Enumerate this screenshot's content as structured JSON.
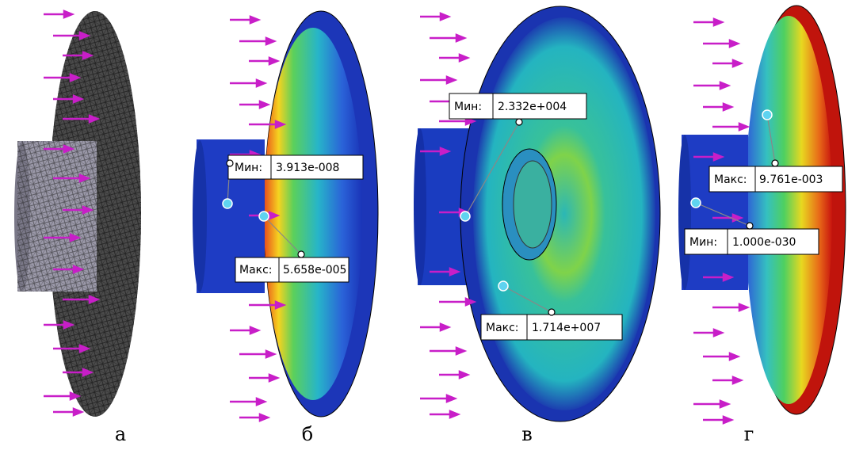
{
  "panels": [
    {
      "label": "а"
    },
    {
      "label": "б",
      "callouts": [
        {
          "name": "Мин:",
          "value": "3.913e-008"
        },
        {
          "name": "Макс:",
          "value": "5.658e-005"
        }
      ]
    },
    {
      "label": "в",
      "callouts": [
        {
          "name": "Мин:",
          "value": "2.332e+004"
        },
        {
          "name": "Макс:",
          "value": "1.714e+007"
        }
      ]
    },
    {
      "label": "г",
      "callouts": [
        {
          "name": "Макс:",
          "value": "9.761e-003"
        },
        {
          "name": "Мин:",
          "value": "1.000e-030"
        }
      ]
    }
  ]
}
